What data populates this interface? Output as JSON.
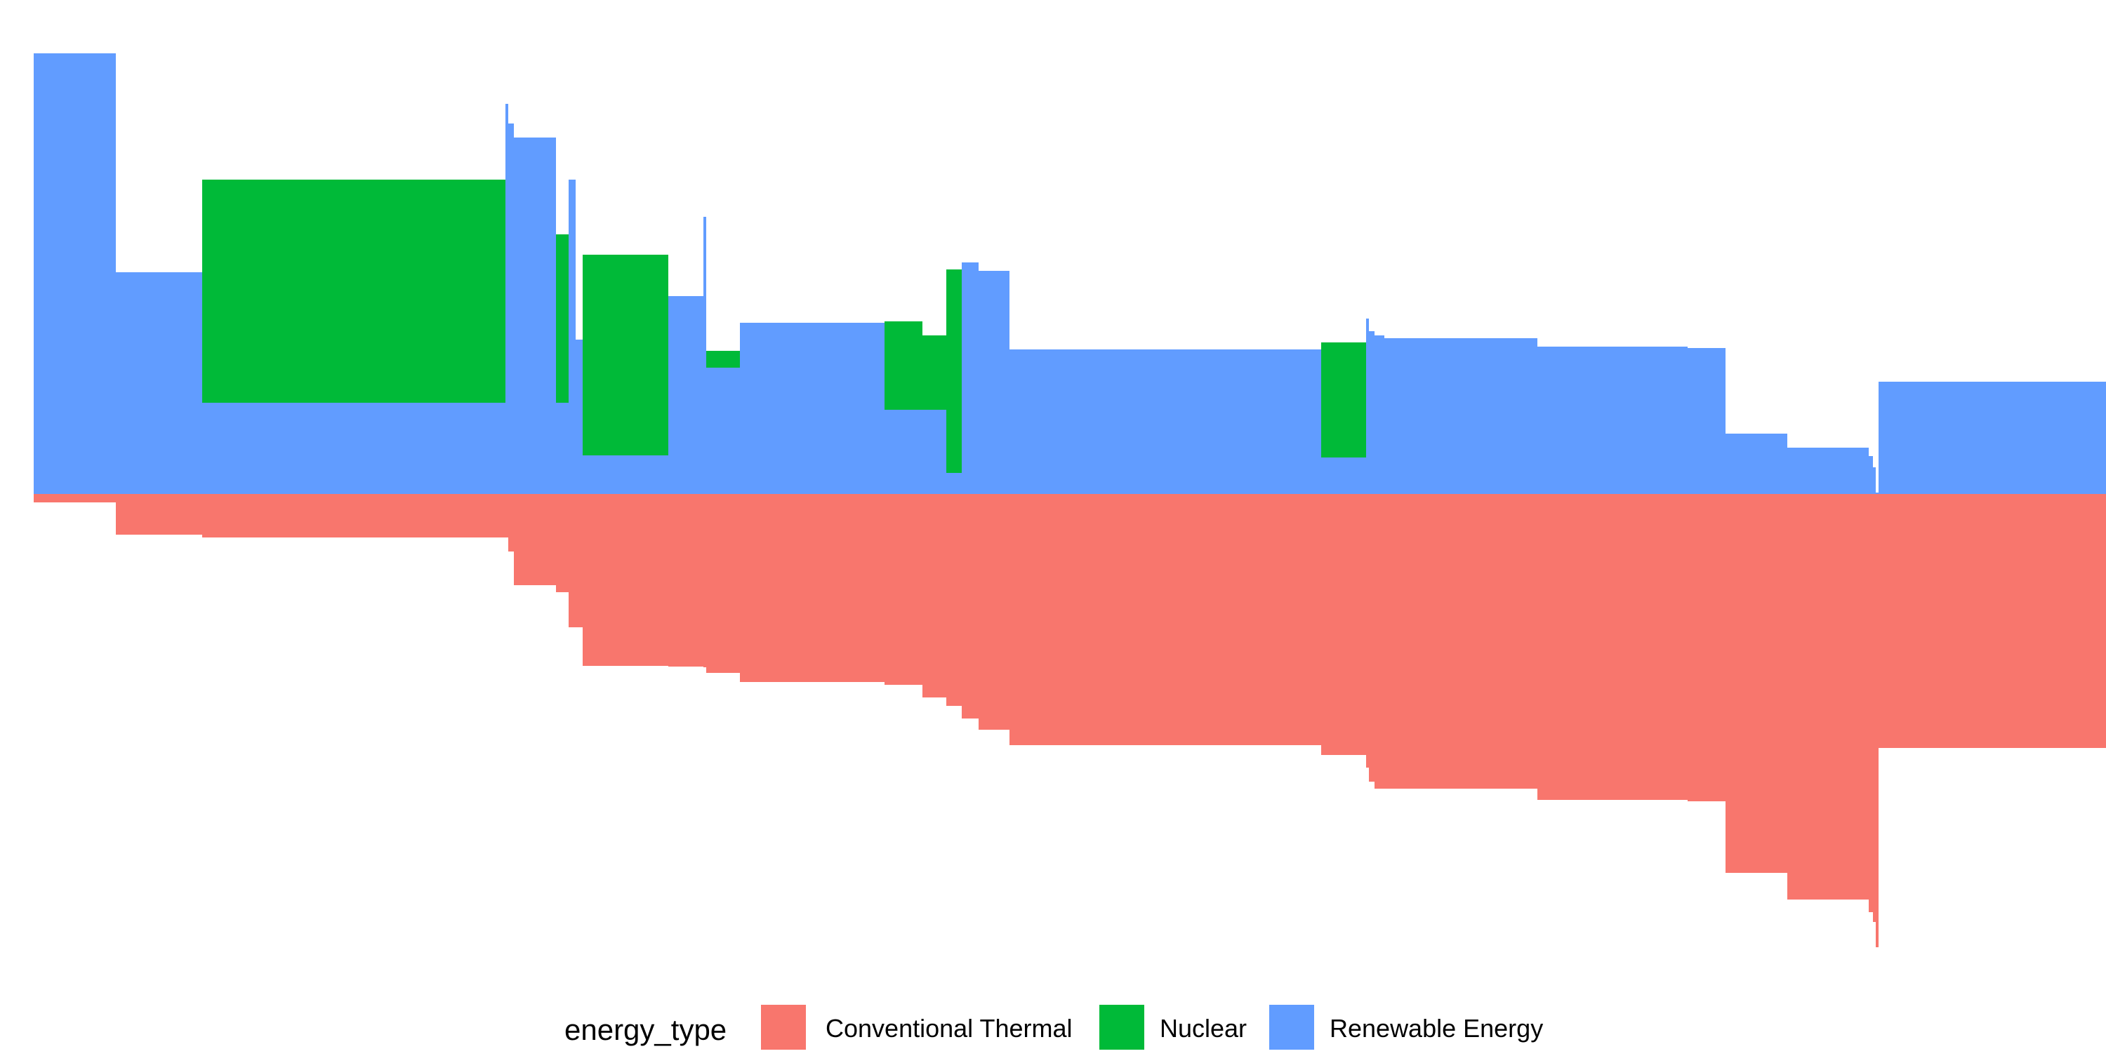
{
  "chart_data": {
    "type": "area",
    "chart_style": "step-area, stacked above baseline, mirrored below baseline",
    "grid": false,
    "axes_visible": false,
    "legend": {
      "title": "energy_type",
      "placement": "bottom",
      "entries": [
        {
          "name": "Conventional Thermal",
          "color": "#F8766D"
        },
        {
          "name": "Nuclear",
          "color": "#00BA38"
        },
        {
          "name": "Renewable Energy",
          "color": "#619CFF"
        }
      ]
    },
    "x_unit": "column index",
    "y_unit": "relative share of page height units",
    "segments": [
      {
        "x0": 0,
        "x1": 117,
        "positive": [
          {
            "series": "Renewable Energy",
            "value": 628
          }
        ],
        "negative": [
          {
            "series": "Conventional Thermal",
            "value": 12
          }
        ]
      },
      {
        "x0": 117,
        "x1": 240,
        "positive": [
          {
            "series": "Renewable Energy",
            "value": 316
          }
        ],
        "negative": [
          {
            "series": "Conventional Thermal",
            "value": 58
          }
        ]
      },
      {
        "x0": 240,
        "x1": 672,
        "positive": [
          {
            "series": "Renewable Energy",
            "value": 130
          },
          {
            "series": "Nuclear",
            "value": 318
          }
        ],
        "negative": [
          {
            "series": "Conventional Thermal",
            "value": 62
          }
        ]
      },
      {
        "x0": 672,
        "x1": 676,
        "positive": [
          {
            "series": "Renewable Energy",
            "value": 556
          }
        ],
        "negative": [
          {
            "series": "Conventional Thermal",
            "value": 62
          }
        ]
      },
      {
        "x0": 676,
        "x1": 684,
        "positive": [
          {
            "series": "Renewable Energy",
            "value": 528
          }
        ],
        "negative": [
          {
            "series": "Conventional Thermal",
            "value": 82
          }
        ]
      },
      {
        "x0": 684,
        "x1": 744,
        "positive": [
          {
            "series": "Renewable Energy",
            "value": 508
          }
        ],
        "negative": [
          {
            "series": "Conventional Thermal",
            "value": 130
          }
        ]
      },
      {
        "x0": 744,
        "x1": 762,
        "positive": [
          {
            "series": "Renewable Energy",
            "value": 130
          },
          {
            "series": "Nuclear",
            "value": 240
          }
        ],
        "negative": [
          {
            "series": "Conventional Thermal",
            "value": 140
          }
        ]
      },
      {
        "x0": 762,
        "x1": 772,
        "positive": [
          {
            "series": "Renewable Energy",
            "value": 448
          }
        ],
        "negative": [
          {
            "series": "Conventional Thermal",
            "value": 190
          }
        ]
      },
      {
        "x0": 772,
        "x1": 782,
        "positive": [
          {
            "series": "Renewable Energy",
            "value": 220
          }
        ],
        "negative": [
          {
            "series": "Conventional Thermal",
            "value": 190
          }
        ]
      },
      {
        "x0": 782,
        "x1": 904,
        "positive": [
          {
            "series": "Renewable Energy",
            "value": 55
          },
          {
            "series": "Nuclear",
            "value": 286
          }
        ],
        "negative": [
          {
            "series": "Conventional Thermal",
            "value": 245
          }
        ]
      },
      {
        "x0": 904,
        "x1": 954,
        "positive": [
          {
            "series": "Renewable Energy",
            "value": 282
          }
        ],
        "negative": [
          {
            "series": "Conventional Thermal",
            "value": 246
          }
        ]
      },
      {
        "x0": 954,
        "x1": 958,
        "positive": [
          {
            "series": "Renewable Energy",
            "value": 395
          }
        ],
        "negative": [
          {
            "series": "Conventional Thermal",
            "value": 247
          }
        ]
      },
      {
        "x0": 958,
        "x1": 1006,
        "positive": [
          {
            "series": "Renewable Energy",
            "value": 180
          },
          {
            "series": "Nuclear",
            "value": 24
          }
        ],
        "negative": [
          {
            "series": "Conventional Thermal",
            "value": 255
          }
        ]
      },
      {
        "x0": 1006,
        "x1": 1212,
        "positive": [
          {
            "series": "Renewable Energy",
            "value": 244
          }
        ],
        "negative": [
          {
            "series": "Conventional Thermal",
            "value": 268
          }
        ]
      },
      {
        "x0": 1212,
        "x1": 1266,
        "positive": [
          {
            "series": "Renewable Energy",
            "value": 120
          },
          {
            "series": "Nuclear",
            "value": 126
          }
        ],
        "negative": [
          {
            "series": "Conventional Thermal",
            "value": 272
          }
        ]
      },
      {
        "x0": 1266,
        "x1": 1300,
        "positive": [
          {
            "series": "Renewable Energy",
            "value": 120
          },
          {
            "series": "Nuclear",
            "value": 106
          }
        ],
        "negative": [
          {
            "series": "Conventional Thermal",
            "value": 290
          }
        ]
      },
      {
        "x0": 1300,
        "x1": 1322,
        "positive": [
          {
            "series": "Renewable Energy",
            "value": 30
          },
          {
            "series": "Nuclear",
            "value": 290
          }
        ],
        "negative": [
          {
            "series": "Conventional Thermal",
            "value": 302
          }
        ]
      },
      {
        "x0": 1322,
        "x1": 1346,
        "positive": [
          {
            "series": "Renewable Energy",
            "value": 330
          }
        ],
        "negative": [
          {
            "series": "Conventional Thermal",
            "value": 320
          }
        ]
      },
      {
        "x0": 1346,
        "x1": 1390,
        "positive": [
          {
            "series": "Renewable Energy",
            "value": 318
          }
        ],
        "negative": [
          {
            "series": "Conventional Thermal",
            "value": 336
          }
        ]
      },
      {
        "x0": 1390,
        "x1": 1834,
        "positive": [
          {
            "series": "Renewable Energy",
            "value": 206
          }
        ],
        "negative": [
          {
            "series": "Conventional Thermal",
            "value": 358
          }
        ]
      },
      {
        "x0": 1834,
        "x1": 1898,
        "positive": [
          {
            "series": "Renewable Energy",
            "value": 52
          },
          {
            "series": "Nuclear",
            "value": 164
          }
        ],
        "negative": [
          {
            "series": "Conventional Thermal",
            "value": 372
          }
        ]
      },
      {
        "x0": 1898,
        "x1": 1902,
        "positive": [
          {
            "series": "Renewable Energy",
            "value": 250
          }
        ],
        "negative": [
          {
            "series": "Conventional Thermal",
            "value": 390
          }
        ]
      },
      {
        "x0": 1902,
        "x1": 1910,
        "positive": [
          {
            "series": "Renewable Energy",
            "value": 232
          }
        ],
        "negative": [
          {
            "series": "Conventional Thermal",
            "value": 410
          }
        ]
      },
      {
        "x0": 1910,
        "x1": 1924,
        "positive": [
          {
            "series": "Renewable Energy",
            "value": 226
          }
        ],
        "negative": [
          {
            "series": "Conventional Thermal",
            "value": 420
          }
        ]
      },
      {
        "x0": 1924,
        "x1": 2142,
        "positive": [
          {
            "series": "Renewable Energy",
            "value": 222
          }
        ],
        "negative": [
          {
            "series": "Conventional Thermal",
            "value": 420
          }
        ]
      },
      {
        "x0": 2142,
        "x1": 2356,
        "positive": [
          {
            "series": "Renewable Energy",
            "value": 210
          }
        ],
        "negative": [
          {
            "series": "Conventional Thermal",
            "value": 436
          }
        ]
      },
      {
        "x0": 2356,
        "x1": 2410,
        "positive": [
          {
            "series": "Renewable Energy",
            "value": 208
          }
        ],
        "negative": [
          {
            "series": "Conventional Thermal",
            "value": 438
          }
        ]
      },
      {
        "x0": 2410,
        "x1": 2498,
        "positive": [
          {
            "series": "Renewable Energy",
            "value": 86
          }
        ],
        "negative": [
          {
            "series": "Conventional Thermal",
            "value": 540
          }
        ]
      },
      {
        "x0": 2498,
        "x1": 2614,
        "positive": [
          {
            "series": "Renewable Energy",
            "value": 66
          }
        ],
        "negative": [
          {
            "series": "Conventional Thermal",
            "value": 578
          }
        ]
      },
      {
        "x0": 2614,
        "x1": 2620,
        "positive": [
          {
            "series": "Renewable Energy",
            "value": 54
          }
        ],
        "negative": [
          {
            "series": "Conventional Thermal",
            "value": 596
          }
        ]
      },
      {
        "x0": 2620,
        "x1": 2624,
        "positive": [
          {
            "series": "Renewable Energy",
            "value": 38
          }
        ],
        "negative": [
          {
            "series": "Conventional Thermal",
            "value": 610
          }
        ]
      },
      {
        "x0": 2624,
        "x1": 2628,
        "positive": [
          {
            "series": "Renewable Energy",
            "value": 2
          }
        ],
        "negative": [
          {
            "series": "Conventional Thermal",
            "value": 646
          }
        ]
      },
      {
        "x0": 2628,
        "x1": 2968,
        "positive": [
          {
            "series": "Renewable Energy",
            "value": 160
          }
        ],
        "negative": [
          {
            "series": "Conventional Thermal",
            "value": 362
          }
        ]
      }
    ],
    "spikes": [
      {
        "x": 672,
        "series": "Renewable Energy",
        "value": 556
      },
      {
        "x": 676,
        "series": "Renewable Energy",
        "value": 528
      },
      {
        "x": 954,
        "series": "Renewable Energy",
        "value": 395
      }
    ]
  }
}
